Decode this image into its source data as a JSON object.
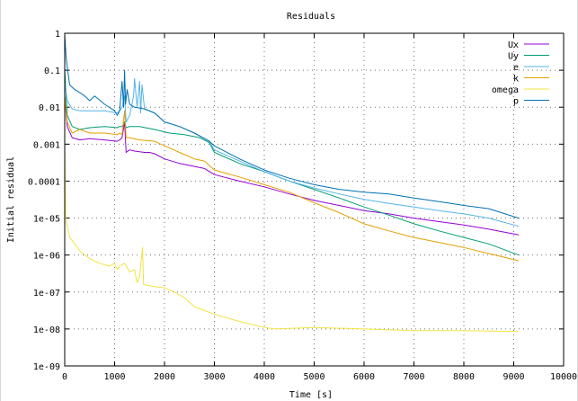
{
  "chart_data": {
    "type": "line",
    "title": "Residuals",
    "xlabel": "Time [s]",
    "ylabel": "Initial residual",
    "xlim": [
      0,
      10000
    ],
    "ylim": [
      1e-09,
      1
    ],
    "yscale": "log",
    "grid": true,
    "legend_position": "top-right",
    "x_ticks": [
      "0",
      "1000",
      "2000",
      "3000",
      "4000",
      "5000",
      "6000",
      "7000",
      "8000",
      "9000",
      "10000"
    ],
    "y_ticks": [
      "1e-09",
      "1e-08",
      "1e-07",
      "1e-06",
      "1e-05",
      "0.0001",
      "0.001",
      "0.01",
      "0.1",
      "1"
    ],
    "series": [
      {
        "name": "Ux",
        "color": "#9400d3",
        "points": [
          [
            0,
            0.02
          ],
          [
            50,
            0.003
          ],
          [
            150,
            0.0015
          ],
          [
            300,
            0.0013
          ],
          [
            500,
            0.0014
          ],
          [
            800,
            0.0013
          ],
          [
            1050,
            0.0012
          ],
          [
            1100,
            0.0013
          ],
          [
            1150,
            0.0015
          ],
          [
            1200,
            0.004
          ],
          [
            1230,
            0.0006
          ],
          [
            1300,
            0.0007
          ],
          [
            1400,
            0.00065
          ],
          [
            1600,
            0.0006
          ],
          [
            1700,
            0.0006
          ],
          [
            1800,
            0.00055
          ],
          [
            2000,
            0.0004
          ],
          [
            2300,
            0.0003
          ],
          [
            2600,
            0.00025
          ],
          [
            2800,
            0.00022
          ],
          [
            3000,
            0.00015
          ],
          [
            3500,
            0.0001
          ],
          [
            4000,
            7e-05
          ],
          [
            4500,
            4.5e-05
          ],
          [
            5000,
            3e-05
          ],
          [
            5500,
            2.2e-05
          ],
          [
            6000,
            1.6e-05
          ],
          [
            6500,
            1.3e-05
          ],
          [
            7000,
            1e-05
          ],
          [
            7500,
            8e-06
          ],
          [
            8000,
            6.5e-06
          ],
          [
            8500,
            5e-06
          ],
          [
            9100,
            3.5e-06
          ]
        ]
      },
      {
        "name": "Uy",
        "color": "#009e73",
        "points": [
          [
            0,
            0.1
          ],
          [
            50,
            0.006
          ],
          [
            150,
            0.003
          ],
          [
            300,
            0.0025
          ],
          [
            500,
            0.0028
          ],
          [
            800,
            0.003
          ],
          [
            1050,
            0.0028
          ],
          [
            1100,
            0.003
          ],
          [
            1150,
            0.003
          ],
          [
            1200,
            0.004
          ],
          [
            1230,
            0.0028
          ],
          [
            1300,
            0.003
          ],
          [
            1500,
            0.003
          ],
          [
            1800,
            0.0025
          ],
          [
            2100,
            0.002
          ],
          [
            2400,
            0.0018
          ],
          [
            2700,
            0.0015
          ],
          [
            2900,
            0.0011
          ],
          [
            3000,
            0.0006
          ],
          [
            3500,
            0.0003
          ],
          [
            4000,
            0.00018
          ],
          [
            4500,
            0.0001
          ],
          [
            5000,
            6e-05
          ],
          [
            5500,
            3.5e-05
          ],
          [
            6000,
            2e-05
          ],
          [
            6500,
            1.2e-05
          ],
          [
            7000,
            7e-06
          ],
          [
            7500,
            4.5e-06
          ],
          [
            8000,
            3e-06
          ],
          [
            8500,
            2e-06
          ],
          [
            9100,
            1e-06
          ]
        ]
      },
      {
        "name": "e",
        "color": "#56b4e9",
        "points": [
          [
            0,
            0.05
          ],
          [
            50,
            0.015
          ],
          [
            150,
            0.009
          ],
          [
            300,
            0.008
          ],
          [
            500,
            0.008
          ],
          [
            800,
            0.008
          ],
          [
            1050,
            0.007
          ],
          [
            1100,
            0.008
          ],
          [
            1150,
            0.01
          ],
          [
            1200,
            0.02
          ],
          [
            1230,
            0.004
          ],
          [
            1300,
            0.006
          ],
          [
            1380,
            0.02
          ],
          [
            1400,
            0.06
          ],
          [
            1450,
            0.01
          ],
          [
            1500,
            0.05
          ],
          [
            1520,
            0.007
          ],
          [
            1550,
            0.04
          ],
          [
            1600,
            0.009
          ],
          [
            1800,
            0.007
          ],
          [
            2000,
            0.004
          ],
          [
            2300,
            0.003
          ],
          [
            2600,
            0.002
          ],
          [
            2900,
            0.0012
          ],
          [
            3000,
            0.0007
          ],
          [
            3500,
            0.00035
          ],
          [
            4000,
            0.00018
          ],
          [
            4500,
            0.0001
          ],
          [
            5000,
            6.5e-05
          ],
          [
            5500,
            4.5e-05
          ],
          [
            6000,
            3.2e-05
          ],
          [
            6500,
            2.5e-05
          ],
          [
            7000,
            2e-05
          ],
          [
            7500,
            1.6e-05
          ],
          [
            8000,
            1.3e-05
          ],
          [
            8500,
            1e-05
          ],
          [
            9100,
            6e-06
          ]
        ]
      },
      {
        "name": "k",
        "color": "#e69f00",
        "points": [
          [
            0,
            0.02
          ],
          [
            50,
            0.004
          ],
          [
            150,
            0.002
          ],
          [
            300,
            0.0025
          ],
          [
            500,
            0.002
          ],
          [
            800,
            0.002
          ],
          [
            1050,
            0.0018
          ],
          [
            1100,
            0.002
          ],
          [
            1150,
            0.0018
          ],
          [
            1200,
            0.008
          ],
          [
            1230,
            0.0015
          ],
          [
            1300,
            0.0015
          ],
          [
            1500,
            0.0013
          ],
          [
            1800,
            0.0012
          ],
          [
            2000,
            0.0009
          ],
          [
            2300,
            0.0006
          ],
          [
            2600,
            0.0004
          ],
          [
            2800,
            0.00035
          ],
          [
            3000,
            0.0002
          ],
          [
            3500,
            0.00013
          ],
          [
            4000,
            8e-05
          ],
          [
            4500,
            5e-05
          ],
          [
            5000,
            2.6e-05
          ],
          [
            5500,
            1.4e-05
          ],
          [
            6000,
            7e-06
          ],
          [
            6500,
            4.5e-06
          ],
          [
            7000,
            3e-06
          ],
          [
            7500,
            2.2e-06
          ],
          [
            8000,
            1.6e-06
          ],
          [
            8500,
            1.1e-06
          ],
          [
            9100,
            7e-07
          ]
        ]
      },
      {
        "name": "omega",
        "color": "#f0e442",
        "points": [
          [
            0,
            0.001
          ],
          [
            20,
            1e-05
          ],
          [
            100,
            3e-06
          ],
          [
            200,
            2e-06
          ],
          [
            300,
            1.3e-06
          ],
          [
            500,
            8e-07
          ],
          [
            700,
            6e-07
          ],
          [
            900,
            5e-07
          ],
          [
            1000,
            6e-07
          ],
          [
            1050,
            4e-07
          ],
          [
            1100,
            5e-07
          ],
          [
            1200,
            6e-07
          ],
          [
            1300,
            3.5e-07
          ],
          [
            1400,
            4e-07
          ],
          [
            1450,
            1.8e-07
          ],
          [
            1500,
            2.5e-07
          ],
          [
            1560,
            1.6e-06
          ],
          [
            1580,
            1.6e-07
          ],
          [
            1800,
            1.4e-07
          ],
          [
            2000,
            1.3e-07
          ],
          [
            2200,
            1e-07
          ],
          [
            2400,
            7e-08
          ],
          [
            2600,
            4e-08
          ],
          [
            3000,
            2.5e-08
          ],
          [
            3500,
            1.6e-08
          ],
          [
            4000,
            1.1e-08
          ],
          [
            4200,
            1e-08
          ],
          [
            5000,
            1.1e-08
          ],
          [
            6000,
            1e-08
          ],
          [
            7000,
            9e-09
          ],
          [
            8000,
            9e-09
          ],
          [
            9100,
            8.5e-09
          ]
        ]
      },
      {
        "name": "p",
        "color": "#0072b2",
        "points": [
          [
            0,
            0.9
          ],
          [
            30,
            0.2
          ],
          [
            100,
            0.04
          ],
          [
            200,
            0.03
          ],
          [
            300,
            0.025
          ],
          [
            400,
            0.02
          ],
          [
            500,
            0.015
          ],
          [
            600,
            0.02
          ],
          [
            800,
            0.012
          ],
          [
            1000,
            0.008
          ],
          [
            1050,
            0.006
          ],
          [
            1100,
            0.008
          ],
          [
            1150,
            0.05
          ],
          [
            1180,
            0.01
          ],
          [
            1200,
            0.1
          ],
          [
            1220,
            0.012
          ],
          [
            1250,
            0.03
          ],
          [
            1300,
            0.012
          ],
          [
            1400,
            0.01
          ],
          [
            1600,
            0.009
          ],
          [
            1800,
            0.007
          ],
          [
            2000,
            0.004
          ],
          [
            2300,
            0.003
          ],
          [
            2600,
            0.002
          ],
          [
            2900,
            0.0012
          ],
          [
            3000,
            0.0009
          ],
          [
            3500,
            0.0004
          ],
          [
            4000,
            0.0002
          ],
          [
            4500,
            0.00012
          ],
          [
            5000,
            8e-05
          ],
          [
            5500,
            6e-05
          ],
          [
            6000,
            5e-05
          ],
          [
            6500,
            4.5e-05
          ],
          [
            7000,
            3.5e-05
          ],
          [
            7500,
            2.8e-05
          ],
          [
            8000,
            2.2e-05
          ],
          [
            8500,
            1.8e-05
          ],
          [
            9100,
            1e-05
          ]
        ]
      }
    ]
  }
}
